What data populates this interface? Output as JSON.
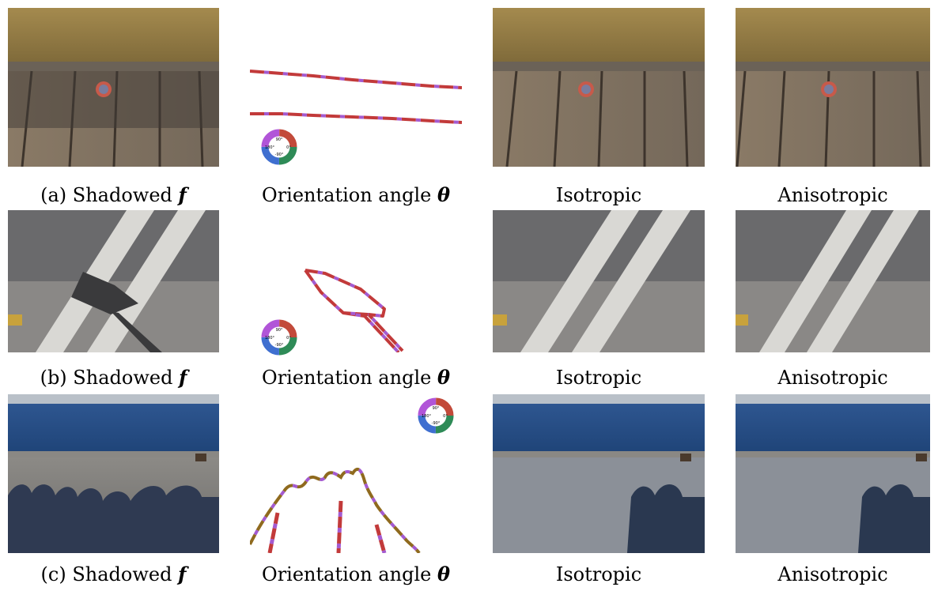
{
  "rows": [
    {
      "captions": {
        "shadowed_prefix": "(a) Shadowed",
        "shadowed_symbol": "f",
        "orientation_prefix": "Orientation angle",
        "orientation_symbol": "θ",
        "isotropic": "Isotropic",
        "anisotropic": "Anisotropic"
      }
    },
    {
      "captions": {
        "shadowed_prefix": "(b) Shadowed",
        "shadowed_symbol": "f",
        "orientation_prefix": "Orientation angle",
        "orientation_symbol": "θ",
        "isotropic": "Isotropic",
        "anisotropic": "Anisotropic"
      }
    },
    {
      "captions": {
        "shadowed_prefix": "(c) Shadowed",
        "shadowed_symbol": "f",
        "orientation_prefix": "Orientation angle",
        "orientation_symbol": "θ",
        "isotropic": "Isotropic",
        "anisotropic": "Anisotropic"
      }
    }
  ],
  "color_wheel": {
    "top": "90°",
    "left": "180°",
    "right": "0°",
    "bottom": "-90°"
  },
  "colors": {
    "edge_red": "#c23a3a",
    "edge_purple": "#a45ad0",
    "edge_olive": "#8f6a1e"
  }
}
